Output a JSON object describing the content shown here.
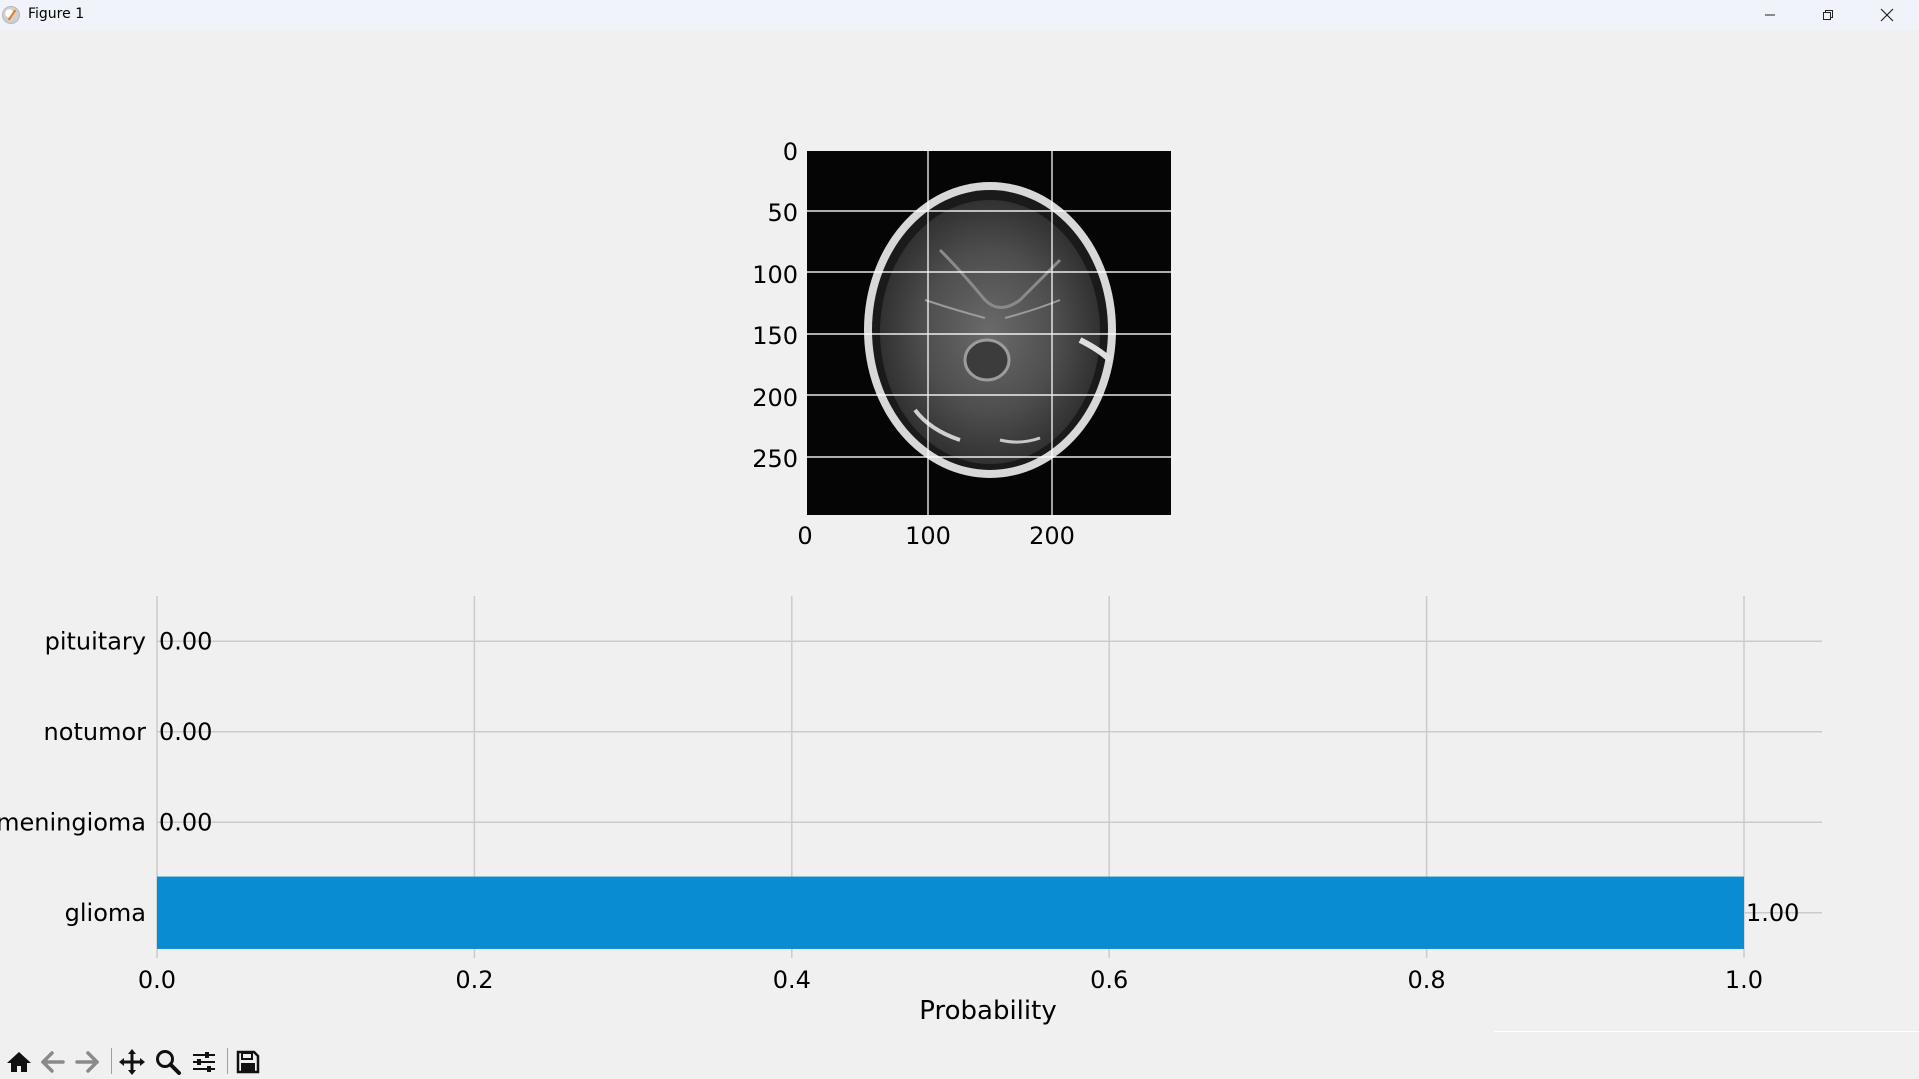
{
  "window": {
    "title": "Figure 1",
    "minimize_icon": "minimize-icon",
    "maximize_icon": "restore-icon",
    "close_icon": "close-icon"
  },
  "image_plot": {
    "x_ticks": [
      "0",
      "100",
      "200"
    ],
    "y_ticks": [
      "0",
      "50",
      "100",
      "150",
      "200",
      "250"
    ],
    "x_range": [
      0,
      293
    ],
    "y_range": [
      0,
      293
    ],
    "grid": true,
    "content": "brain MRI axial slice"
  },
  "chart_data": {
    "type": "bar",
    "orientation": "horizontal",
    "categories": [
      "glioma",
      "meningioma",
      "notumor",
      "pituitary"
    ],
    "values": [
      1.0,
      0.0,
      0.0,
      0.0
    ],
    "value_labels": [
      "1.00",
      "0.00",
      "0.00",
      "0.00"
    ],
    "xlabel": "Probability",
    "ylabel": "",
    "x_ticks": [
      "0.0",
      "0.2",
      "0.4",
      "0.6",
      "0.8",
      "1.0"
    ],
    "xlim": [
      0.0,
      1.05
    ],
    "grid": true,
    "bar_color": "#0a8cd2"
  },
  "toolbar": {
    "buttons": [
      {
        "name": "home-icon"
      },
      {
        "name": "back-icon"
      },
      {
        "name": "forward-icon"
      },
      {
        "name": "pan-icon"
      },
      {
        "name": "zoom-icon"
      },
      {
        "name": "configure-subplots-icon"
      },
      {
        "name": "save-icon"
      }
    ]
  }
}
